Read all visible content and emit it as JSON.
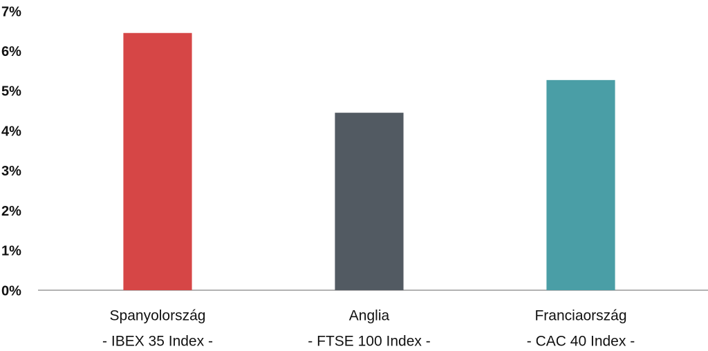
{
  "chart_data": {
    "type": "bar",
    "categories": [
      [
        "Spanyolország",
        "- IBEX 35 Index -"
      ],
      [
        "Anglia",
        "- FTSE 100 Index -"
      ],
      [
        "Franciaország",
        "- CAC 40 Index -"
      ]
    ],
    "values": [
      6.45,
      4.45,
      5.27
    ],
    "colors": [
      "#d64646",
      "#525a62",
      "#4a9ea6"
    ],
    "ylim": [
      0,
      7
    ],
    "yticks": [
      {
        "value": 0,
        "label": "0%"
      },
      {
        "value": 1,
        "label": "1%"
      },
      {
        "value": 2,
        "label": "2%"
      },
      {
        "value": 3,
        "label": "3%"
      },
      {
        "value": 4,
        "label": "4%"
      },
      {
        "value": 5,
        "label": "5%"
      },
      {
        "value": 6,
        "label": "6%"
      },
      {
        "value": 7,
        "label": "7%"
      }
    ],
    "grid": false
  }
}
